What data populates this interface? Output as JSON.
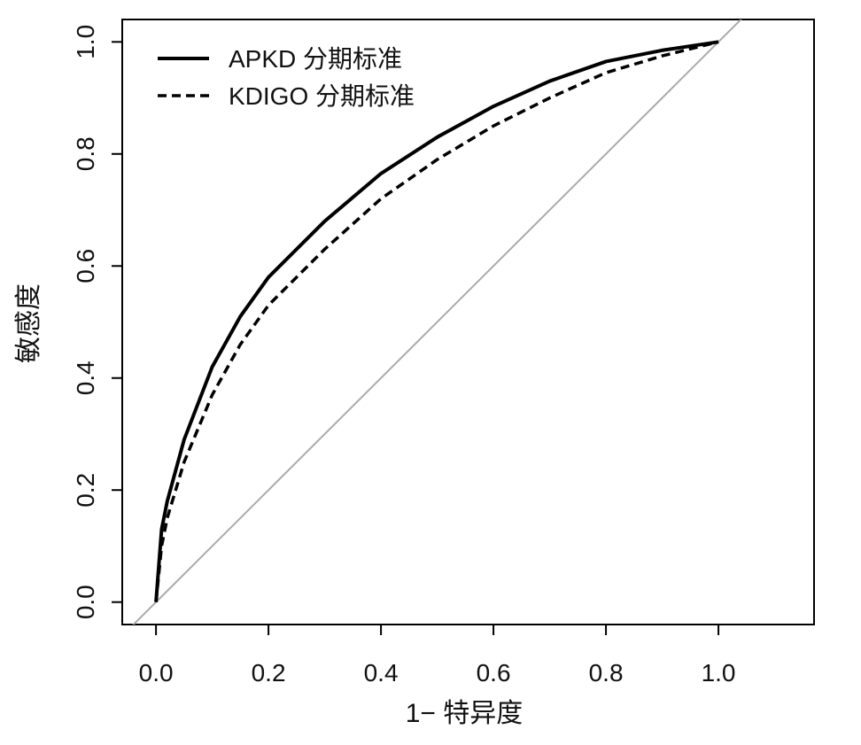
{
  "chart_data": {
    "type": "line",
    "xlabel": "1− 特异度",
    "ylabel": "敏感度",
    "xlim": [
      -0.06,
      1.17
    ],
    "ylim": [
      -0.04,
      1.04
    ],
    "x_ticks": [
      "0.0",
      "0.2",
      "0.4",
      "0.6",
      "0.8",
      "1.0"
    ],
    "y_ticks": [
      "0.0",
      "0.2",
      "0.4",
      "0.6",
      "0.8",
      "1.0"
    ],
    "grid": false,
    "legend_position": "top-left",
    "series": [
      {
        "name": "APKD 分期标准",
        "style": "solid",
        "color": "#000000",
        "x": [
          0,
          0.01,
          0.02,
          0.05,
          0.1,
          0.15,
          0.2,
          0.3,
          0.4,
          0.5,
          0.6,
          0.7,
          0.8,
          0.9,
          1.0
        ],
        "y": [
          0,
          0.13,
          0.18,
          0.29,
          0.42,
          0.51,
          0.58,
          0.68,
          0.765,
          0.83,
          0.885,
          0.93,
          0.965,
          0.985,
          1.0
        ]
      },
      {
        "name": "KDIGO 分期标准",
        "style": "dashed",
        "color": "#000000",
        "x": [
          0,
          0.01,
          0.02,
          0.05,
          0.1,
          0.15,
          0.2,
          0.3,
          0.4,
          0.5,
          0.6,
          0.7,
          0.8,
          0.9,
          1.0
        ],
        "y": [
          0,
          0.1,
          0.15,
          0.25,
          0.37,
          0.46,
          0.53,
          0.63,
          0.72,
          0.79,
          0.85,
          0.9,
          0.945,
          0.975,
          1.0
        ]
      },
      {
        "name": "",
        "style": "diagonal",
        "color": "#aaaaaa",
        "x": [
          -0.06,
          1.06
        ],
        "y": [
          -0.06,
          1.06
        ]
      }
    ]
  }
}
